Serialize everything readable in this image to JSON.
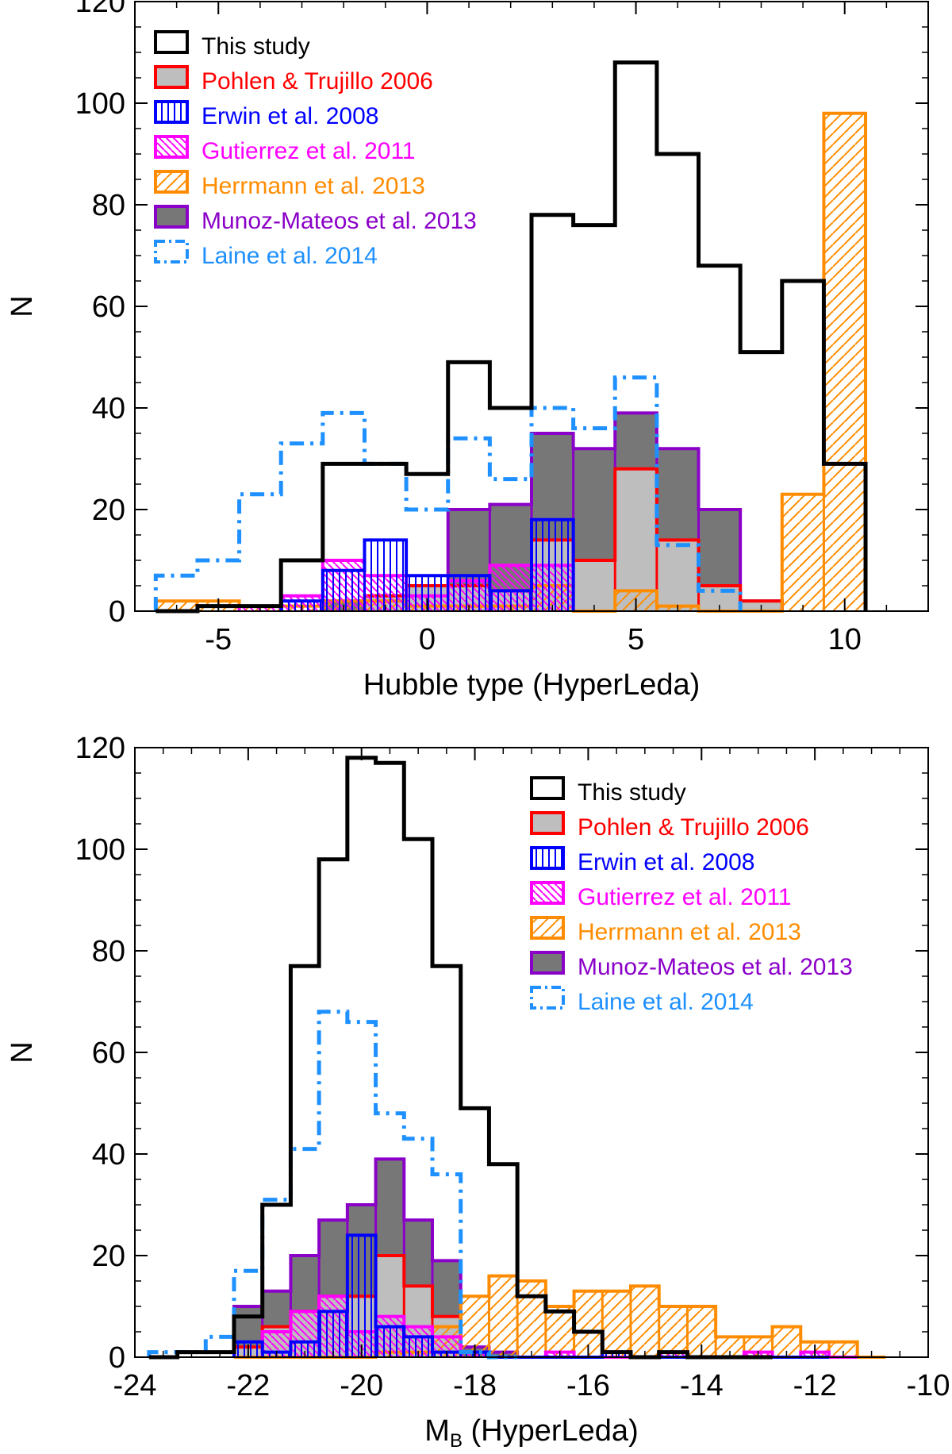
{
  "figure": "two stacked histograms",
  "chart_data": [
    {
      "type": "histogram",
      "id": "top",
      "xlabel": "Hubble type (HyperLeda)",
      "ylabel": "N",
      "xlim": [
        -7,
        12
      ],
      "ylim": [
        0,
        120
      ],
      "xticks": [
        -5,
        0,
        5,
        10
      ],
      "yticks": [
        0,
        20,
        40,
        60,
        80,
        100,
        120
      ],
      "legend_position": "top-left",
      "series": [
        {
          "name": "This study",
          "color": "#000000",
          "style": "open-solid",
          "x": [
            -6,
            -5,
            -4,
            -3,
            -2,
            -1,
            0,
            1,
            2,
            3,
            4,
            5,
            6,
            7,
            8,
            9,
            10
          ],
          "values": [
            0,
            1,
            1,
            10,
            29,
            29,
            27,
            49,
            40,
            78,
            76,
            108,
            90,
            68,
            51,
            65,
            29
          ]
        },
        {
          "name": "Pohlen & Trujillo 2006",
          "color": "#ff0000",
          "style": "filled-lightgray",
          "x": [
            -1,
            0,
            1,
            2,
            3,
            4,
            5,
            6,
            7,
            8
          ],
          "values": [
            3,
            5,
            5,
            4,
            14,
            10,
            28,
            14,
            5,
            2
          ]
        },
        {
          "name": "Erwin et al. 2008",
          "color": "#0000ff",
          "style": "vertical-lines",
          "x": [
            -3,
            -2,
            -1,
            0,
            1,
            2,
            3
          ],
          "values": [
            2,
            8,
            14,
            7,
            7,
            4,
            18
          ]
        },
        {
          "name": "Gutierrez et al. 2011",
          "color": "#ff00ff",
          "style": "diagonal-backslash",
          "x": [
            -4,
            -3,
            -2,
            -1,
            0,
            1,
            2,
            3
          ],
          "values": [
            1,
            3,
            10,
            7,
            3,
            6,
            9,
            9
          ]
        },
        {
          "name": "Herrmann et al. 2013",
          "color": "#ff8c00",
          "style": "diagonal-slash",
          "x": [
            -6,
            -5,
            -4,
            -3,
            -2,
            -1,
            0,
            1,
            2,
            3,
            4,
            5,
            6,
            7,
            8,
            9,
            10
          ],
          "values": [
            2,
            2,
            1,
            1,
            2,
            2,
            1,
            1,
            1,
            5,
            0,
            4,
            1,
            0,
            0,
            23,
            98
          ]
        },
        {
          "name": "Munoz-Mateos et al. 2013",
          "color": "#8b00c8",
          "style": "filled-darkgray",
          "x": [
            -2,
            -1,
            0,
            1,
            2,
            3,
            4,
            5,
            6,
            7,
            8
          ],
          "values": [
            2,
            3,
            5,
            20,
            21,
            35,
            32,
            39,
            32,
            20,
            2
          ]
        },
        {
          "name": "Laine et al. 2014",
          "color": "#1e90ff",
          "style": "open-dashdot",
          "x": [
            -6,
            -5,
            -4,
            -3,
            -2,
            -1,
            0,
            1,
            2,
            3,
            4,
            5,
            6,
            7
          ],
          "values": [
            7,
            10,
            23,
            33,
            39,
            29,
            20,
            34,
            26,
            40,
            36,
            46,
            13,
            4
          ]
        }
      ]
    },
    {
      "type": "histogram",
      "id": "bottom",
      "xlabel": "M_B (HyperLeda)",
      "xlabel_main": "M",
      "xlabel_sub": "B",
      "xlabel_rest": " (HyperLeda)",
      "ylabel": "N",
      "xlim": [
        -24,
        -10
      ],
      "ylim": [
        0,
        120
      ],
      "xticks": [
        -24,
        -22,
        -20,
        -18,
        -16,
        -14,
        -12,
        -10
      ],
      "yticks": [
        0,
        20,
        40,
        60,
        80,
        100,
        120
      ],
      "legend_position": "top-right",
      "series": [
        {
          "name": "This study",
          "color": "#000000",
          "style": "open-solid",
          "x": [
            -23.5,
            -23,
            -22.5,
            -22,
            -21.5,
            -21,
            -20.5,
            -20,
            -19.5,
            -19,
            -18.5,
            -18,
            -17.5,
            -17,
            -16.5,
            -16,
            -15.5,
            -15,
            -14.5,
            -14,
            -13.5,
            -13
          ],
          "values": [
            0,
            1,
            1,
            8,
            30,
            77,
            98,
            118,
            117,
            102,
            77,
            49,
            38,
            12,
            9,
            5,
            1,
            0,
            1,
            0,
            0,
            0
          ]
        },
        {
          "name": "Pohlen & Trujillo 2006",
          "color": "#ff0000",
          "style": "filled-lightgray",
          "x": [
            -22,
            -21.5,
            -21,
            -20.5,
            -20,
            -19.5,
            -19,
            -18.5
          ],
          "values": [
            2,
            6,
            9,
            12,
            12,
            20,
            14,
            8
          ]
        },
        {
          "name": "Erwin et al. 2008",
          "color": "#0000ff",
          "style": "vertical-lines",
          "x": [
            -22,
            -21.5,
            -21,
            -20.5,
            -20,
            -19.5,
            -19,
            -18.5,
            -18,
            -17.5,
            -17,
            -16.5,
            -16,
            -15.5,
            -15,
            -14.5,
            -14,
            -13.5,
            -13,
            -12.5,
            -12
          ],
          "values": [
            3,
            1,
            3,
            9,
            24,
            6,
            4,
            1,
            1,
            0,
            0,
            0,
            0,
            1,
            0,
            0,
            0,
            0,
            0,
            0,
            0
          ]
        },
        {
          "name": "Gutierrez et al. 2011",
          "color": "#ff00ff",
          "style": "diagonal-backslash",
          "x": [
            -21.5,
            -21,
            -20.5,
            -20,
            -19.5,
            -19,
            -18.5,
            -18,
            -17.5,
            -17,
            -16.5,
            -16,
            -15.5,
            -15,
            -14.5,
            -14,
            -13.5,
            -13,
            -12.5,
            -12,
            -11.5
          ],
          "values": [
            5,
            9,
            12,
            5,
            8,
            6,
            4,
            1,
            0,
            0,
            1,
            0,
            0,
            0,
            1,
            0,
            0,
            1,
            0,
            1,
            0
          ]
        },
        {
          "name": "Herrmann et al. 2013",
          "color": "#ff8c00",
          "style": "diagonal-slash",
          "x": [
            -22,
            -21.5,
            -21,
            -20.5,
            -20,
            -19.5,
            -19,
            -18.5,
            -18,
            -17.5,
            -17,
            -16.5,
            -16,
            -15.5,
            -15,
            -14.5,
            -14,
            -13.5,
            -13,
            -12.5,
            -12,
            -11.5,
            -11
          ],
          "values": [
            0,
            0,
            0,
            0,
            0,
            1,
            1,
            6,
            12,
            16,
            15,
            10,
            13,
            13,
            14,
            10,
            10,
            4,
            4,
            6,
            3,
            3,
            0
          ]
        },
        {
          "name": "Munoz-Mateos et al. 2013",
          "color": "#8b00c8",
          "style": "filled-darkgray",
          "x": [
            -22,
            -21.5,
            -21,
            -20.5,
            -20,
            -19.5,
            -19,
            -18.5,
            -18,
            -17.5
          ],
          "values": [
            10,
            13,
            20,
            27,
            30,
            39,
            27,
            19,
            2,
            1
          ]
        },
        {
          "name": "Laine et al. 2014",
          "color": "#1e90ff",
          "style": "open-dashdot",
          "x": [
            -23.5,
            -23,
            -22.5,
            -22,
            -21.5,
            -21,
            -20.5,
            -20,
            -19.5,
            -19,
            -18.5,
            -18,
            -17.5
          ],
          "values": [
            1,
            1,
            4,
            17,
            31,
            41,
            68,
            66,
            48,
            43,
            36,
            1,
            0
          ]
        }
      ]
    }
  ],
  "colors": {
    "fill_lightgray": "#bebebe",
    "fill_darkgray": "#777777",
    "axis": "#000000"
  }
}
